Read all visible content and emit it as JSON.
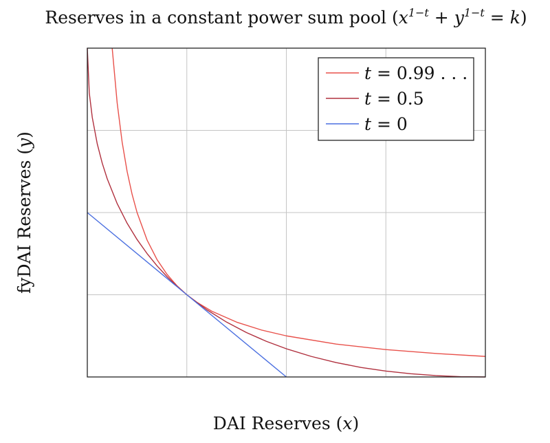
{
  "chart_data": {
    "type": "line",
    "title": "Reserves in a constant power sum pool (x^(1−t) + y^(1−t) = k)",
    "title_parts": {
      "prefix": "Reserves in a constant power sum pool (",
      "x": "x",
      "exp": "1−t",
      "plus": " + ",
      "y": "y",
      "equals": " = ",
      "k": "k",
      "suffix": ")"
    },
    "xlabel": "DAI Reserves (x)",
    "ylabel": "fyDAI Reserves (y)",
    "xlabel_parts": {
      "text": "DAI Reserves (",
      "var": "x",
      "close": ")"
    },
    "ylabel_parts": {
      "text": "fyDAI Reserves (",
      "var": "y",
      "close": ")"
    },
    "xlim": [
      0,
      4
    ],
    "ylim": [
      0,
      4
    ],
    "grid": true,
    "tick_labels_shown": false,
    "legend_position": "top-right",
    "series": [
      {
        "name": "t = 0.99...",
        "legend": {
          "var": "t",
          "rest": " = 0.99 . . ."
        },
        "color": "#e8504a",
        "formula": "xy = 1",
        "x": [
          0.25,
          0.3,
          0.35,
          0.4,
          0.45,
          0.5,
          0.6,
          0.7,
          0.8,
          0.9,
          1.0,
          1.1,
          1.25,
          1.5,
          1.75,
          2.0,
          2.5,
          3.0,
          3.5,
          4.0
        ],
        "y": [
          4.0,
          3.333,
          2.857,
          2.5,
          2.222,
          2.0,
          1.667,
          1.429,
          1.25,
          1.111,
          1.0,
          0.909,
          0.8,
          0.667,
          0.571,
          0.5,
          0.4,
          0.333,
          0.286,
          0.25
        ]
      },
      {
        "name": "t = 0.5",
        "legend": {
          "var": "t",
          "rest": " = 0.5"
        },
        "color": "#b0303e",
        "formula": "sqrt(x) + sqrt(y) = 2",
        "x": [
          0.0,
          0.02,
          0.05,
          0.1,
          0.15,
          0.2,
          0.3,
          0.4,
          0.5,
          0.6,
          0.7,
          0.8,
          0.9,
          1.0,
          1.2,
          1.4,
          1.6,
          1.8,
          2.0,
          2.25,
          2.5,
          2.75,
          3.0,
          3.25,
          3.5,
          3.75,
          4.0
        ],
        "y": [
          4.0,
          3.454,
          3.156,
          2.835,
          2.601,
          2.411,
          2.109,
          1.87,
          1.672,
          1.502,
          1.353,
          1.222,
          1.105,
          1.0,
          0.818,
          0.667,
          0.54,
          0.433,
          0.343,
          0.25,
          0.175,
          0.116,
          0.072,
          0.039,
          0.017,
          0.004,
          0.0
        ]
      },
      {
        "name": "t = 0",
        "legend": {
          "var": "t",
          "rest": " = 0"
        },
        "color": "#4a6fe0",
        "formula": "x + y = 2",
        "x": [
          0.0,
          2.0
        ],
        "y": [
          2.0,
          0.0
        ]
      }
    ]
  }
}
